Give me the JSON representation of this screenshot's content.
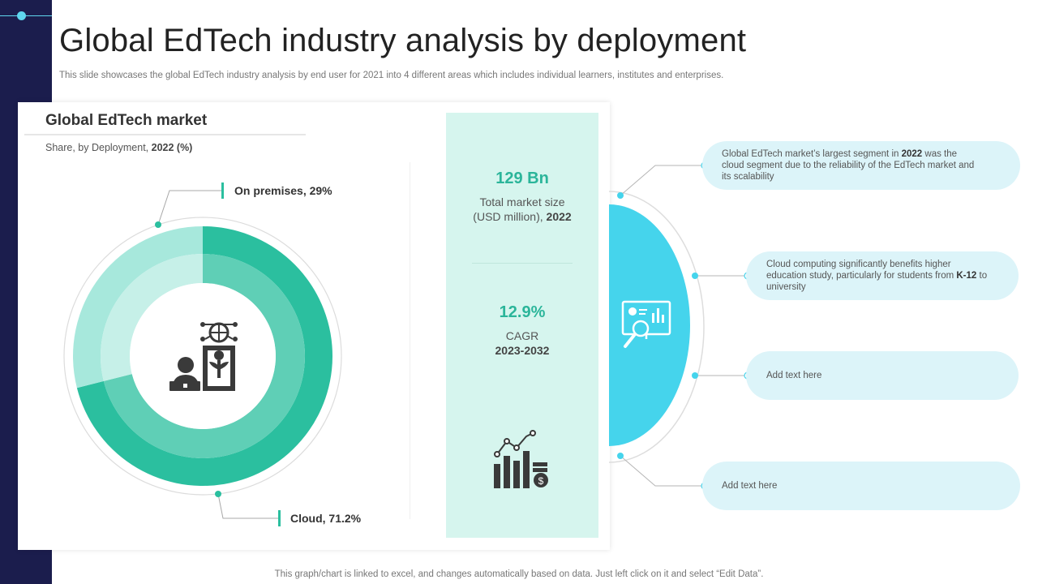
{
  "slide": {
    "title": "Global EdTech industry analysis by deployment",
    "subtitle": "This slide showcases the global EdTech industry analysis by end user for 2021 into 4 different areas which includes individual learners, institutes and enterprises.",
    "footer": "This graph/chart is linked to excel,  and changes automatically based on data. Just left click on it and select “Edit Data”."
  },
  "card": {
    "title": "Global EdTech market",
    "sub_prefix": "Share,  by Deployment,  ",
    "sub_bold": "2022 (%)"
  },
  "chart_data": {
    "type": "pie",
    "variant": "donut",
    "title": "Global EdTech market",
    "subtitle": "Share, by Deployment, 2022 (%)",
    "categories": [
      "Cloud",
      "On premises"
    ],
    "values": [
      71.2,
      29
    ],
    "labels": [
      "Cloud, 71.2%",
      "On premises, 29%"
    ],
    "colors": [
      "#2bbf9f",
      "#a7e8dc"
    ],
    "inner_colors": [
      "#5fcfb6",
      "#c6f0e8"
    ]
  },
  "stats": {
    "market_value": "129 Bn",
    "market_label_1": "Total market size",
    "market_label_2": "(USD million), ",
    "market_label_year": "2022",
    "cagr_value": "12.9%",
    "cagr_label": "CAGR",
    "cagr_period": "2023-2032"
  },
  "points": [
    {
      "pre": "Global EdTech market’s largest segment in ",
      "bold": "2022",
      "post": " was the cloud segment due to the reliability of the EdTech market and its scalability"
    },
    {
      "pre": "Cloud computing significantly benefits higher education study, particularly for students from ",
      "bold": "K-12",
      "post": " to university"
    },
    {
      "pre": "Add text here",
      "bold": "",
      "post": ""
    },
    {
      "pre": "Add text here",
      "bold": "",
      "post": ""
    }
  ],
  "colors": {
    "sidebar": "#1b1d4d",
    "accent_cyan": "#45d4ec",
    "accent_teal": "#2bb59a",
    "pill_bg": "#dcf4f9",
    "stats_bg": "#d6f5ee"
  }
}
